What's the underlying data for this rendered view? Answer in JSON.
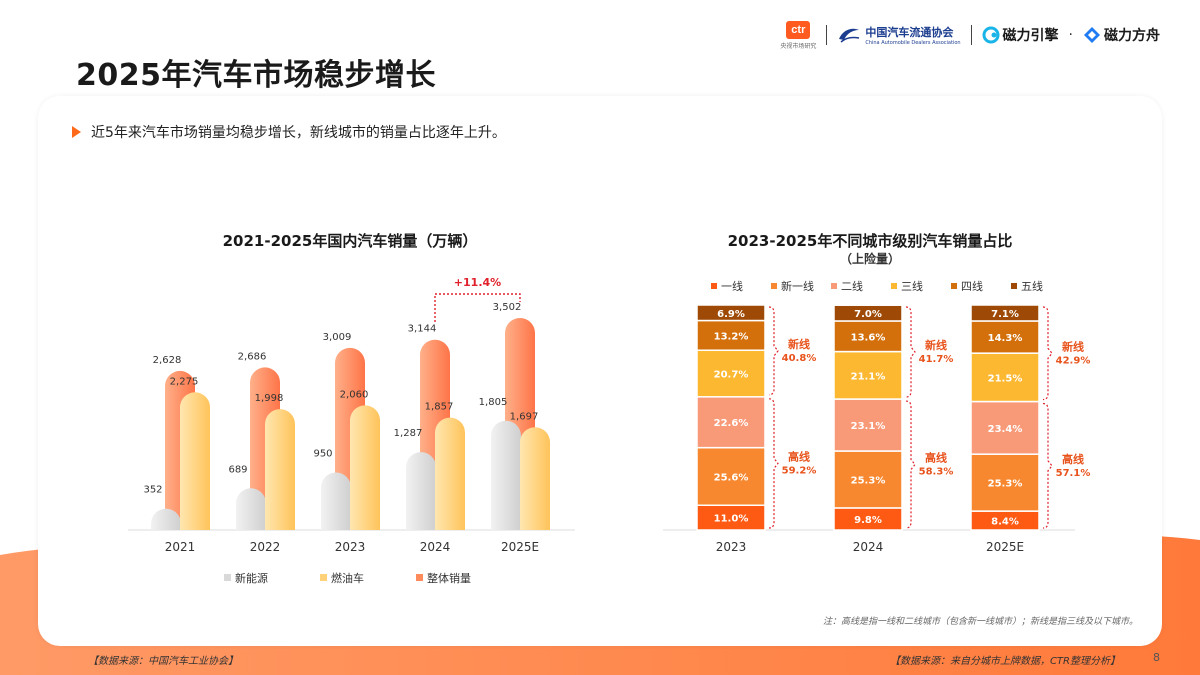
{
  "header": {
    "title": "2025年汽车市场稳步增长",
    "logos": {
      "ctr": "ctr",
      "ctr_sub": "央视市场研究",
      "caam_cn": "中国汽车流通协会",
      "caam_en": "China Automobile Dealers Association",
      "cili_yinqing": "磁力引擎",
      "dot": "·",
      "cili_fangzhou": "磁力方舟"
    }
  },
  "bullet": "近5年来汽车市场销量均稳步增长，新线城市的销量占比逐年上升。",
  "note": "注：高线是指一线和二线城市（包含新一线城市）；新线是指三线及以下城市。",
  "footer": {
    "left": "【数据来源：中国汽车工业协会】",
    "right": "【数据来源：来自分城市上牌数据，CTR整理分析】",
    "page": "8"
  },
  "colors": {
    "accent": "#ff6a1a",
    "nev": "#d9d9d9",
    "fuel": "#ffd27a",
    "total": "#ff8a5c",
    "tier1": "#ff5a14",
    "newtier1": "#f7882f",
    "tier2": "#f89a78",
    "tier3": "#fcb830",
    "tier4": "#d3700b",
    "tier5": "#9e4a06"
  },
  "chart_data": [
    {
      "type": "bar",
      "title": "2021-2025年国内汽车销量（万辆）",
      "categories": [
        "2021",
        "2022",
        "2023",
        "2024",
        "2025E"
      ],
      "series": [
        {
          "name": "新能源",
          "values": [
            352,
            689,
            950,
            1287,
            1805
          ],
          "labels": [
            "352",
            "689",
            "950",
            "1,287",
            "1,805"
          ]
        },
        {
          "name": "燃油车",
          "values": [
            2275,
            1998,
            2060,
            1857,
            1697
          ],
          "labels": [
            "2,275",
            "1,998",
            "2,060",
            "1,857",
            "1,697"
          ]
        },
        {
          "name": "整体销量",
          "values": [
            2628,
            2686,
            3009,
            3144,
            3502
          ],
          "labels": [
            "2,628",
            "2,686",
            "3,009",
            "3,144",
            "3,502"
          ]
        }
      ],
      "annotation": "+11.4%",
      "ylim": [
        0,
        3800
      ],
      "legend": "bottom",
      "grid": false
    },
    {
      "type": "bar",
      "stacked": true,
      "title": "2023-2025年不同城市级别汽车销量占比",
      "subtitle": "（上险量）",
      "categories": [
        "2023",
        "2024",
        "2025E"
      ],
      "series": [
        {
          "name": "一线",
          "values": [
            11.0,
            9.8,
            8.4
          ]
        },
        {
          "name": "新一线",
          "values": [
            25.6,
            25.3,
            25.3
          ]
        },
        {
          "name": "二线",
          "values": [
            22.6,
            23.1,
            23.4
          ]
        },
        {
          "name": "三线",
          "values": [
            20.7,
            21.1,
            21.5
          ]
        },
        {
          "name": "四线",
          "values": [
            13.2,
            13.6,
            14.3
          ]
        },
        {
          "name": "五线",
          "values": [
            6.9,
            7.0,
            7.1
          ]
        }
      ],
      "groups": [
        {
          "name": "高线",
          "values": [
            "59.2%",
            "58.3%",
            "57.1%"
          ]
        },
        {
          "name": "新线",
          "values": [
            "40.8%",
            "41.7%",
            "42.9%"
          ]
        }
      ],
      "ylim": [
        0,
        100
      ],
      "legend": "top",
      "grid": false
    }
  ]
}
